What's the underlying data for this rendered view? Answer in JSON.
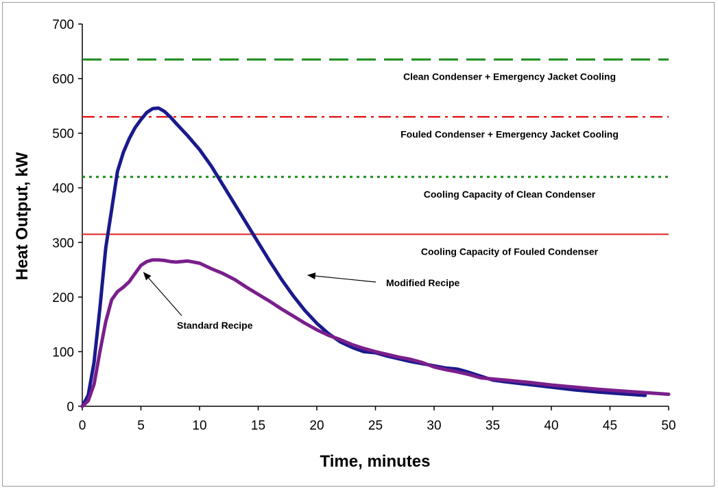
{
  "chart_data": {
    "type": "line",
    "title": "",
    "xlabel": "Time, minutes",
    "ylabel": "Heat Output, kW",
    "xlim": [
      0,
      50
    ],
    "ylim": [
      0,
      700
    ],
    "xticks": [
      0,
      5,
      10,
      15,
      20,
      25,
      30,
      35,
      40,
      45,
      50
    ],
    "yticks": [
      0,
      100,
      200,
      300,
      400,
      500,
      600,
      700
    ],
    "grid": false,
    "legend": "none",
    "reference_lines": [
      {
        "label": "Clean Condenser + Emergency Jacket Cooling",
        "y": 635,
        "color": "#1a8a1a",
        "style": "dashed"
      },
      {
        "label": "Fouled Condenser + Emergency Jacket Cooling",
        "y": 530,
        "color": "#e02020",
        "style": "dashdot"
      },
      {
        "label": "Cooling Capacity of Clean Condenser",
        "y": 420,
        "color": "#1a8a1a",
        "style": "dotted"
      },
      {
        "label": "Cooling Capacity of Fouled Condenser",
        "y": 315,
        "color": "#e02020",
        "style": "solid"
      }
    ],
    "series": [
      {
        "name": "Modified Recipe",
        "color": "#1a1a8c",
        "x": [
          0,
          0.5,
          1,
          1.5,
          2,
          2.5,
          3,
          3.5,
          4,
          4.5,
          5,
          5.5,
          6,
          6.5,
          7,
          7.5,
          8,
          9,
          10,
          11,
          12,
          13,
          14,
          15,
          16,
          17,
          18,
          19,
          20,
          21,
          22,
          23,
          24,
          25,
          26,
          27,
          28,
          29,
          30,
          31,
          32,
          33,
          34,
          35,
          36,
          38,
          40,
          42,
          44,
          46,
          48
        ],
        "y": [
          0,
          20,
          80,
          180,
          290,
          360,
          430,
          465,
          490,
          510,
          525,
          538,
          545,
          546,
          540,
          530,
          518,
          495,
          470,
          440,
          405,
          370,
          335,
          300,
          265,
          232,
          202,
          175,
          152,
          133,
          118,
          108,
          100,
          98,
          92,
          87,
          82,
          78,
          74,
          70,
          68,
          62,
          55,
          48,
          45,
          40,
          35,
          30,
          26,
          23,
          20
        ]
      },
      {
        "name": "Standard Recipe",
        "color": "#7a1f8c",
        "x": [
          0,
          0.5,
          1,
          1.5,
          2,
          2.5,
          3,
          3.5,
          4,
          4.5,
          5,
          5.5,
          6,
          6.5,
          7,
          7.5,
          8,
          9,
          10,
          11,
          12,
          13,
          14,
          15,
          16,
          17,
          18,
          19,
          20,
          21,
          22,
          23,
          24,
          25,
          26,
          27,
          28,
          29,
          30,
          31,
          32,
          33,
          34,
          35,
          36,
          38,
          40,
          42,
          44,
          46,
          48,
          50
        ],
        "y": [
          0,
          10,
          40,
          100,
          155,
          195,
          210,
          218,
          228,
          243,
          258,
          265,
          268,
          268,
          267,
          265,
          264,
          266,
          262,
          252,
          243,
          232,
          218,
          205,
          192,
          178,
          165,
          152,
          140,
          130,
          122,
          113,
          106,
          100,
          95,
          90,
          86,
          80,
          72,
          67,
          63,
          58,
          52,
          50,
          48,
          44,
          39,
          35,
          31,
          28,
          25,
          22
        ]
      }
    ],
    "annotations": [
      {
        "text": "Modified Recipe",
        "target_x": 19,
        "target_y": 230
      },
      {
        "text": "Standard Recipe",
        "target_x": 5,
        "target_y": 235
      }
    ]
  }
}
